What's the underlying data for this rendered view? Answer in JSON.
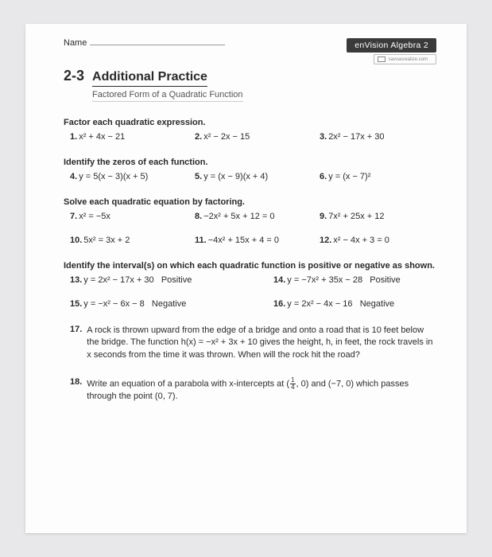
{
  "header": {
    "name_label": "Name",
    "brand": "enVision",
    "brand_sub": "Algebra 2",
    "savvas": "savvasrealize.com",
    "lesson": "2-3",
    "title": "Additional Practice",
    "subtitle": "Factored Form of a Quadratic Function"
  },
  "s1": {
    "head": "Factor each quadratic expression.",
    "q1": "x² + 4x − 21",
    "q2": "x² − 2x − 15",
    "q3": "2x² − 17x + 30"
  },
  "s2": {
    "head": "Identify the zeros of each function.",
    "q4": "y = 5(x − 3)(x + 5)",
    "q5": "y = (x − 9)(x + 4)",
    "q6": "y = (x − 7)²"
  },
  "s3": {
    "head": "Solve each quadratic equation by factoring.",
    "q7": "x² = −5x",
    "q8": "−2x² + 5x + 12 = 0",
    "q9": "7x² + 25x + 12",
    "q10": "5x² = 3x + 2",
    "q11": "−4x² + 15x + 4 = 0",
    "q12": "x² − 4x + 3 = 0"
  },
  "s4": {
    "head": "Identify the interval(s) on which each quadratic function is positive or negative as shown.",
    "q13a": "y = 2x² − 17x + 30",
    "q13b": "Positive",
    "q14a": "y = −7x² + 35x − 28",
    "q14b": "Positive",
    "q15a": "y = −x² − 6x − 8",
    "q15b": "Negative",
    "q16a": "y = 2x² − 4x − 16",
    "q16b": "Negative"
  },
  "wp17": "A rock is thrown upward from the edge of a bridge and onto a road that is 10 feet below the bridge. The function h(x) = −x² + 3x + 10 gives the height, h, in feet, the rock travels in x seconds from the time it was thrown. When will the rock hit the road?",
  "wp18_a": "Write an equation of a parabola with x-intercepts at (",
  "wp18_b": ", 0) and (−7, 0) which passes through the point (0, 7).",
  "nums": {
    "n1": "1.",
    "n2": "2.",
    "n3": "3.",
    "n4": "4.",
    "n5": "5.",
    "n6": "6.",
    "n7": "7.",
    "n8": "8.",
    "n9": "9.",
    "n10": "10.",
    "n11": "11.",
    "n12": "12.",
    "n13": "13.",
    "n14": "14.",
    "n15": "15.",
    "n16": "16.",
    "n17": "17.",
    "n18": "18."
  },
  "colors": {
    "page_bg": "#fdfdfd",
    "outer_bg": "#e8e8ea",
    "text": "#2a2a2a",
    "brand_bg": "#3a3a3a"
  }
}
